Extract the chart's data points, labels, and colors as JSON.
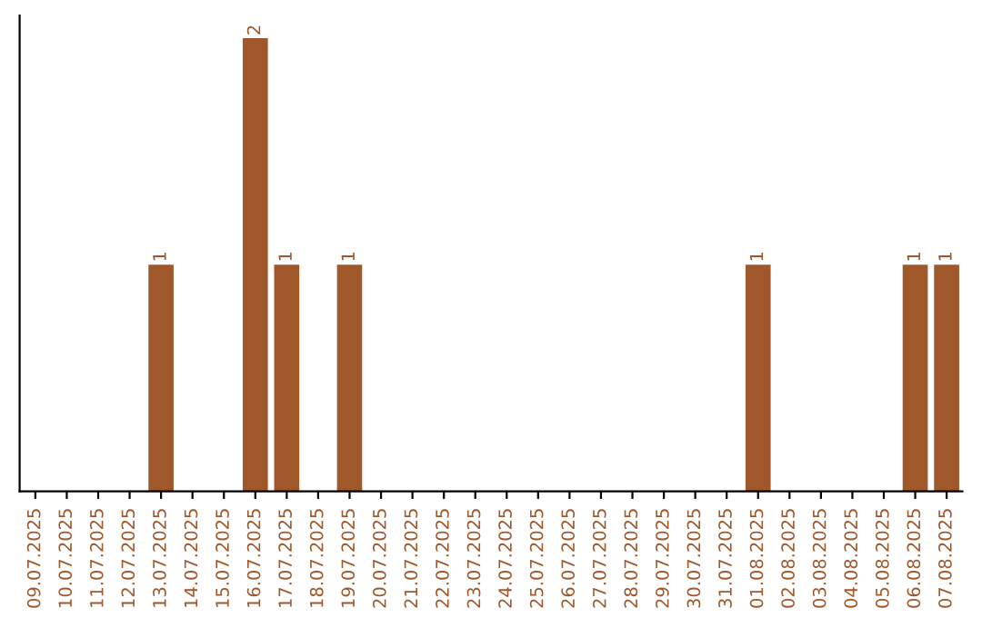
{
  "chart_data": {
    "type": "bar",
    "categories": [
      "09.07.2025",
      "10.07.2025",
      "11.07.2025",
      "12.07.2025",
      "13.07.2025",
      "14.07.2025",
      "15.07.2025",
      "16.07.2025",
      "17.07.2025",
      "18.07.2025",
      "19.07.2025",
      "20.07.2025",
      "21.07.2025",
      "22.07.2025",
      "23.07.2025",
      "24.07.2025",
      "25.07.2025",
      "26.07.2025",
      "27.07.2025",
      "28.07.2025",
      "29.07.2025",
      "30.07.2025",
      "31.07.2025",
      "01.08.2025",
      "02.08.2025",
      "03.08.2025",
      "04.08.2025",
      "05.08.2025",
      "06.08.2025",
      "07.08.2025"
    ],
    "values": [
      0,
      0,
      0,
      0,
      1,
      0,
      0,
      2,
      1,
      0,
      1,
      0,
      0,
      0,
      0,
      0,
      0,
      0,
      0,
      0,
      0,
      0,
      0,
      1,
      0,
      0,
      0,
      0,
      1,
      1
    ],
    "value_labels": [
      null,
      null,
      null,
      null,
      "1",
      null,
      null,
      "2",
      "1",
      null,
      "1",
      null,
      null,
      null,
      null,
      null,
      null,
      null,
      null,
      null,
      null,
      null,
      null,
      "1",
      null,
      null,
      null,
      null,
      "1",
      "1"
    ],
    "color": "#a0572a",
    "tick_labels": "x",
    "grid": false,
    "legend": false
  }
}
